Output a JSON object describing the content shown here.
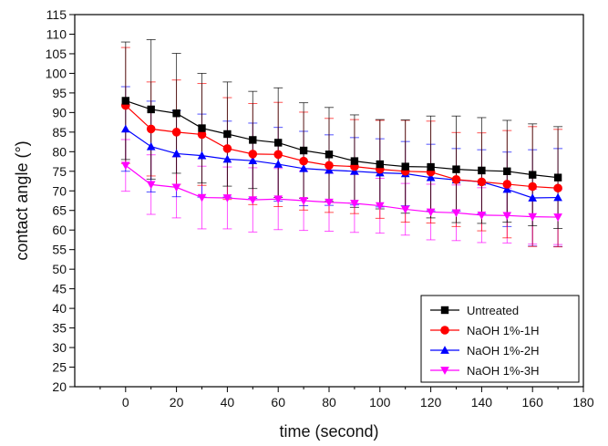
{
  "chart_data": {
    "type": "line",
    "title": "",
    "xlabel": "time (second)",
    "ylabel": "contact angle (°)",
    "xlim": [
      -20,
      180
    ],
    "ylim": [
      20,
      115
    ],
    "x_ticks": [
      0,
      20,
      40,
      60,
      80,
      100,
      120,
      140,
      160,
      180
    ],
    "y_ticks": [
      20,
      25,
      30,
      35,
      40,
      45,
      50,
      55,
      60,
      65,
      70,
      75,
      80,
      85,
      90,
      95,
      100,
      105,
      110,
      115
    ],
    "grid": false,
    "legend_position": "bottom-right",
    "x": [
      0,
      10,
      20,
      30,
      40,
      50,
      60,
      70,
      80,
      90,
      100,
      110,
      120,
      130,
      140,
      150,
      160,
      170
    ],
    "series": [
      {
        "name": "Untreated",
        "color": "#000000",
        "marker": "square",
        "values": [
          93.0,
          90.8,
          89.8,
          86.0,
          84.5,
          83.0,
          82.3,
          80.3,
          79.3,
          77.6,
          76.8,
          76.2,
          76.1,
          75.5,
          75.2,
          75.0,
          74.1,
          73.4
        ],
        "errors": [
          15.0,
          17.8,
          15.3,
          14.0,
          13.3,
          12.4,
          14.0,
          12.2,
          12.0,
          11.8,
          11.4,
          11.9,
          13.0,
          13.6,
          13.5,
          13.0,
          13.0,
          13.0
        ]
      },
      {
        "name": "NaOH 1%-1H",
        "color": "#ff0000",
        "marker": "circle",
        "values": [
          91.8,
          85.8,
          85.0,
          84.4,
          80.8,
          79.4,
          79.3,
          77.6,
          76.5,
          76.2,
          75.5,
          75.0,
          74.8,
          72.9,
          72.3,
          71.7,
          71.1,
          70.7
        ],
        "errors": [
          14.8,
          12.0,
          13.3,
          13.0,
          13.0,
          12.9,
          13.3,
          12.5,
          12.0,
          12.0,
          12.5,
          13.0,
          13.0,
          12.0,
          12.5,
          13.7,
          15.3,
          15.0
        ]
      },
      {
        "name": "NaOH 1%-2H",
        "color": "#0000ff",
        "marker": "triangle-up",
        "values": [
          85.8,
          81.3,
          79.5,
          79.0,
          78.1,
          77.7,
          76.8,
          75.7,
          75.3,
          75.0,
          74.6,
          74.4,
          73.4,
          72.8,
          72.3,
          70.4,
          68.2,
          68.3
        ],
        "errors": [
          10.8,
          11.6,
          11.0,
          10.6,
          9.7,
          9.6,
          9.4,
          9.5,
          9.0,
          8.6,
          8.7,
          8.2,
          8.5,
          8.0,
          8.2,
          9.5,
          12.3,
          12.5
        ]
      },
      {
        "name": "NaOH 1%-3H",
        "color": "#ff00ff",
        "marker": "triangle-down",
        "values": [
          76.5,
          71.6,
          70.9,
          68.3,
          68.2,
          67.7,
          67.9,
          67.5,
          67.1,
          66.8,
          66.2,
          65.3,
          64.6,
          64.4,
          63.8,
          63.7,
          63.4,
          63.3
        ],
        "errors": [
          6.6,
          7.6,
          7.8,
          8.0,
          7.9,
          8.2,
          7.8,
          7.6,
          7.4,
          7.4,
          7.0,
          6.6,
          7.1,
          7.1,
          7.0,
          7.0,
          7.0,
          7.0
        ]
      }
    ]
  }
}
